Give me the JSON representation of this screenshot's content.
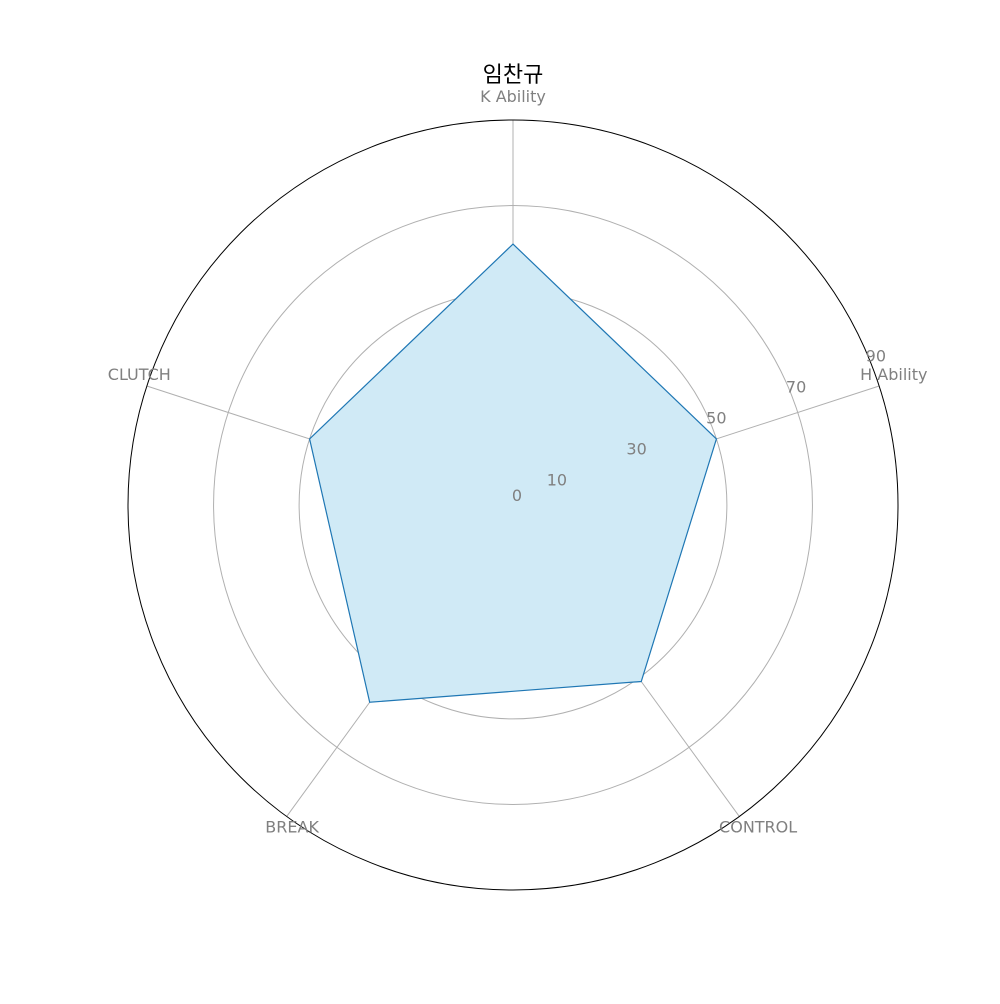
{
  "chart_data": {
    "type": "radar",
    "title": "임찬규",
    "categories": [
      "K Ability",
      "H Ability",
      "CONTROL",
      "BREAK",
      "CLUTCH"
    ],
    "series": [
      {
        "values": [
          61,
          50,
          51,
          57,
          50
        ]
      }
    ],
    "rlim": [
      0,
      90
    ],
    "radial_ticks": [
      0,
      10,
      30,
      50,
      70,
      90
    ],
    "grid": true,
    "colors": {
      "line": "#1f77b4",
      "fill": "#d0eaf6",
      "grid": "#b0b0b0",
      "outer_ring": "#000000",
      "labels": "#808080",
      "title": "#000000"
    }
  }
}
